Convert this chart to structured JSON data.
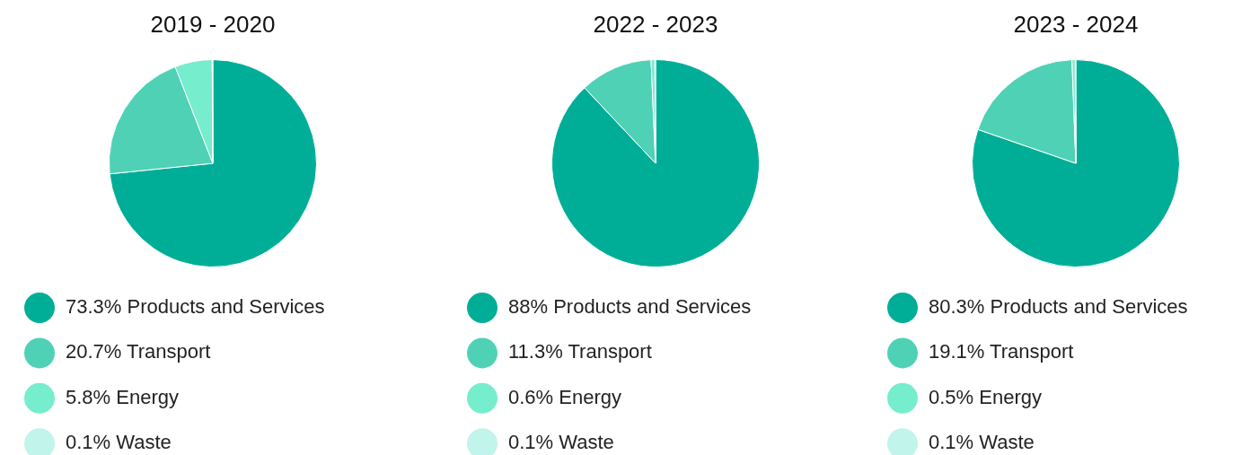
{
  "chart_data": [
    {
      "type": "pie",
      "title": "2019 - 2020",
      "categories": [
        "Products and Services",
        "Transport",
        "Energy",
        "Waste"
      ],
      "values": [
        73.3,
        20.7,
        5.8,
        0.1
      ],
      "value_labels": [
        "73.3%",
        "20.7%",
        "5.8%",
        "0.1%"
      ],
      "colors": [
        "#00ae97",
        "#4fd1b5",
        "#76edcd",
        "#c1f4ea"
      ],
      "legend": "bottom"
    },
    {
      "type": "pie",
      "title": "2022 - 2023",
      "categories": [
        "Products and Services",
        "Transport",
        "Energy",
        "Waste"
      ],
      "values": [
        88,
        11.3,
        0.6,
        0.1
      ],
      "value_labels": [
        "88%",
        "11.3%",
        "0.6%",
        "0.1%"
      ],
      "colors": [
        "#00ae97",
        "#4fd1b5",
        "#76edcd",
        "#c1f4ea"
      ],
      "legend": "bottom"
    },
    {
      "type": "pie",
      "title": "2023 - 2024",
      "categories": [
        "Products and Services",
        "Transport",
        "Energy",
        "Waste"
      ],
      "values": [
        80.3,
        19.1,
        0.5,
        0.1
      ],
      "value_labels": [
        "80.3%",
        "19.1%",
        "0.5%",
        "0.1%"
      ],
      "colors": [
        "#00ae97",
        "#4fd1b5",
        "#76edcd",
        "#c1f4ea"
      ],
      "legend": "bottom"
    }
  ]
}
